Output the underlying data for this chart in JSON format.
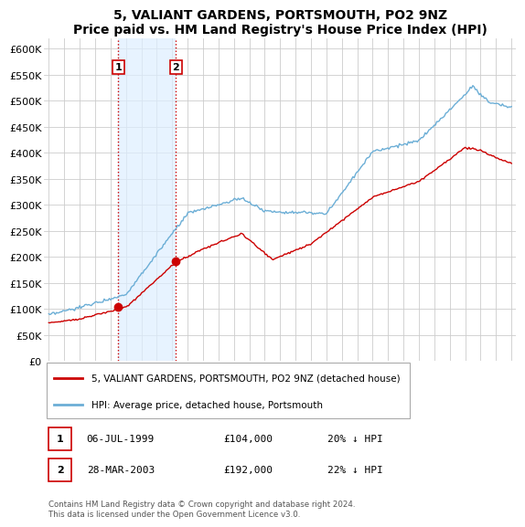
{
  "title": "5, VALIANT GARDENS, PORTSMOUTH, PO2 9NZ",
  "subtitle": "Price paid vs. HM Land Registry's House Price Index (HPI)",
  "ylabel_ticks": [
    "£0",
    "£50K",
    "£100K",
    "£150K",
    "£200K",
    "£250K",
    "£300K",
    "£350K",
    "£400K",
    "£450K",
    "£500K",
    "£550K",
    "£600K"
  ],
  "ytick_vals": [
    0,
    50000,
    100000,
    150000,
    200000,
    250000,
    300000,
    350000,
    400000,
    450000,
    500000,
    550000,
    600000
  ],
  "ylim": [
    0,
    620000
  ],
  "xlim_min": 1994.7,
  "xlim_max": 2025.3,
  "purchase1": {
    "date_x": 1999.51,
    "price": 104000,
    "label": "1"
  },
  "purchase2": {
    "date_x": 2003.24,
    "price": 192000,
    "label": "2"
  },
  "legend_property": "5, VALIANT GARDENS, PORTSMOUTH, PO2 9NZ (detached house)",
  "legend_hpi": "HPI: Average price, detached house, Portsmouth",
  "table_row1": [
    "1",
    "06-JUL-1999",
    "£104,000",
    "20% ↓ HPI"
  ],
  "table_row2": [
    "2",
    "28-MAR-2003",
    "£192,000",
    "22% ↓ HPI"
  ],
  "footer": "Contains HM Land Registry data © Crown copyright and database right 2024.\nThis data is licensed under the Open Government Licence v3.0.",
  "property_color": "#cc0000",
  "hpi_color": "#6baed6",
  "span_color": "#ddeeff",
  "vline_color": "#cc0000",
  "grid_color": "#cccccc",
  "bg_color": "#ffffff",
  "title_fontsize": 10,
  "subtitle_fontsize": 9,
  "tick_fontsize": 8,
  "xtick_fontsize": 7
}
